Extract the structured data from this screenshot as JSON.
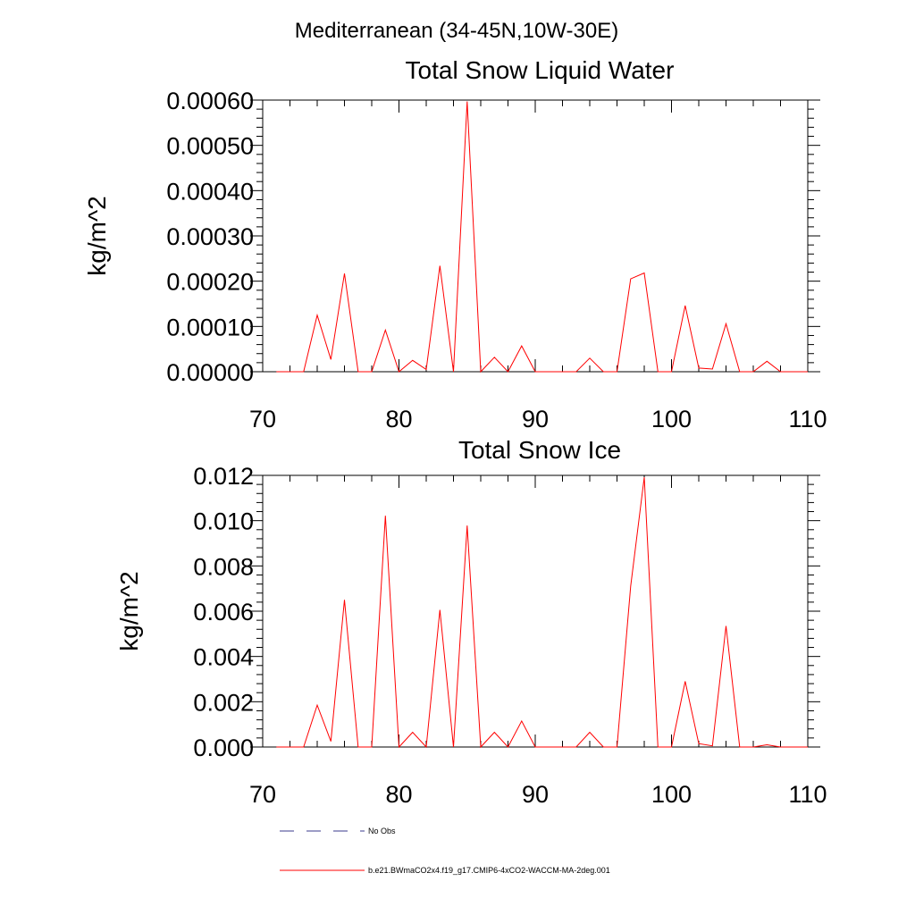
{
  "figure": {
    "suptitle": "Mediterranean (34-45N,10W-30E)"
  },
  "chart_data": [
    {
      "type": "line",
      "title": "Total Snow Liquid Water",
      "xlabel": "",
      "ylabel": "kg/m^2",
      "xlim": [
        70,
        110
      ],
      "ylim": [
        0,
        0.0006
      ],
      "x_ticks": [
        70,
        80,
        90,
        100,
        110
      ],
      "x_tick_labels": [
        "70",
        "80",
        "90",
        "100",
        "110"
      ],
      "y_ticks": [
        0,
        0.0001,
        0.0002,
        0.0003,
        0.0004,
        0.0005,
        0.0006
      ],
      "y_tick_labels": [
        "0.00000",
        "0.00010",
        "0.00020",
        "0.00030",
        "0.00040",
        "0.00050",
        "0.00060"
      ],
      "grid": false,
      "series": [
        {
          "name": "b.e21.BWmaCO2x4.f19_g17.CMIP6-4xCO2-WACCM-MA-2deg.001",
          "color": "#ff0000",
          "x": [
            71,
            72,
            73,
            74,
            75,
            76,
            77,
            78,
            79,
            80,
            81,
            82,
            83,
            84,
            85,
            86,
            87,
            88,
            89,
            90,
            91,
            92,
            93,
            94,
            95,
            96,
            97,
            98,
            99,
            100,
            101,
            102,
            103,
            104,
            105,
            106,
            107,
            108,
            109,
            110
          ],
          "values": [
            0,
            0,
            0,
            0.000125,
            2.7e-05,
            0.000217,
            0,
            0,
            9.2e-05,
            0,
            2.5e-05,
            5e-06,
            0.000234,
            0,
            0.000597,
            0,
            3.2e-05,
            0,
            5.7e-05,
            0,
            0,
            0,
            0,
            3e-05,
            0,
            0,
            0.000205,
            0.000218,
            0,
            0,
            0.000146,
            8e-06,
            6e-06,
            0.000106,
            0,
            0,
            2.3e-05,
            0,
            0,
            0
          ]
        }
      ]
    },
    {
      "type": "line",
      "title": "Total Snow Ice",
      "xlabel": "",
      "ylabel": "kg/m^2",
      "xlim": [
        70,
        110
      ],
      "ylim": [
        0,
        0.012
      ],
      "x_ticks": [
        70,
        80,
        90,
        100,
        110
      ],
      "x_tick_labels": [
        "70",
        "80",
        "90",
        "100",
        "110"
      ],
      "y_ticks": [
        0,
        0.002,
        0.004,
        0.006,
        0.008,
        0.01,
        0.012
      ],
      "y_tick_labels": [
        "0.000",
        "0.002",
        "0.004",
        "0.006",
        "0.008",
        "0.010",
        "0.012"
      ],
      "grid": false,
      "series": [
        {
          "name": "b.e21.BWmaCO2x4.f19_g17.CMIP6-4xCO2-WACCM-MA-2deg.001",
          "color": "#ff0000",
          "x": [
            71,
            72,
            73,
            74,
            75,
            76,
            77,
            78,
            79,
            80,
            81,
            82,
            83,
            84,
            85,
            86,
            87,
            88,
            89,
            90,
            91,
            92,
            93,
            94,
            95,
            96,
            97,
            98,
            99,
            100,
            101,
            102,
            103,
            104,
            105,
            106,
            107,
            108,
            109,
            110
          ],
          "values": [
            0,
            0,
            0,
            0.00185,
            0.00025,
            0.0065,
            0,
            0,
            0.01022,
            0,
            0.00065,
            0,
            0.00606,
            0,
            0.00978,
            0,
            0.00065,
            0,
            0.00115,
            0,
            0,
            0,
            0,
            0.00065,
            0,
            0,
            0.0071,
            0.01192,
            0,
            0,
            0.0029,
            0.00015,
            5e-05,
            0.00535,
            0,
            0,
            0.0001,
            0,
            0,
            0
          ]
        }
      ]
    }
  ],
  "legend": {
    "entries": [
      {
        "label": "No Obs",
        "style": "dashed",
        "color": "#3b3b8c"
      },
      {
        "label": "b.e21.BWmaCO2x4.f19_g17.CMIP6-4xCO2-WACCM-MA-2deg.001",
        "style": "solid",
        "color": "#ff0000"
      }
    ]
  }
}
